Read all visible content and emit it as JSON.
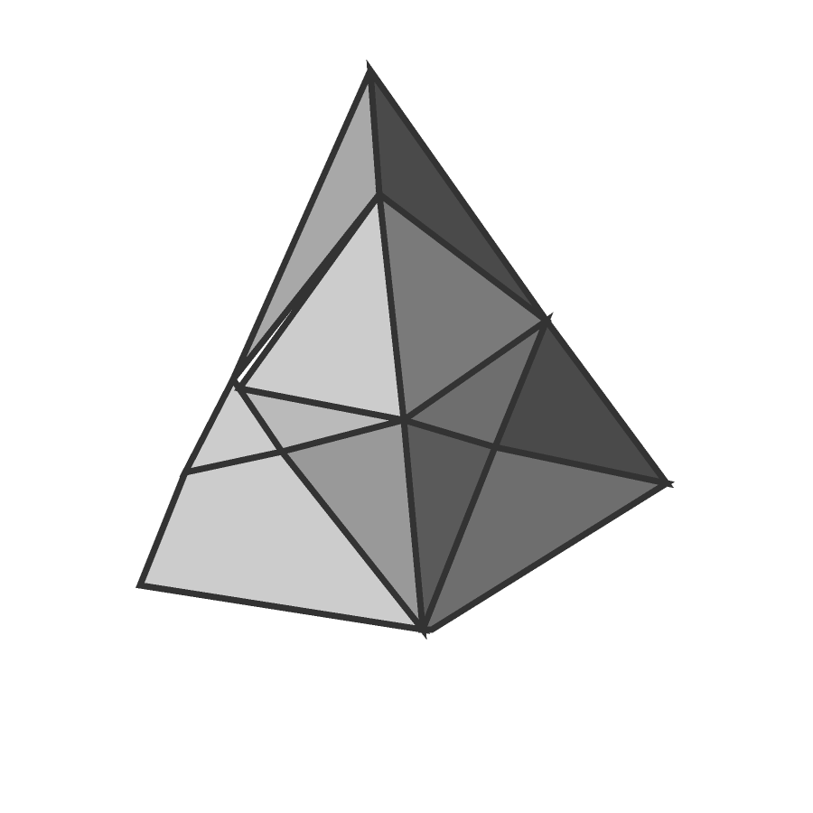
{
  "figure": {
    "subject": "polyhedron",
    "background_color": "#ffffff",
    "edge_color": "#333333",
    "shades": {
      "lightest": "#cccccc",
      "light": "#bababa",
      "mid_light": "#a8a8a8",
      "mid": "#999999",
      "mid_dark": "#7a7a7a",
      "dark": "#6e6e6e",
      "darker": "#5a5a5a",
      "darkest": "#4a4a4a"
    }
  }
}
